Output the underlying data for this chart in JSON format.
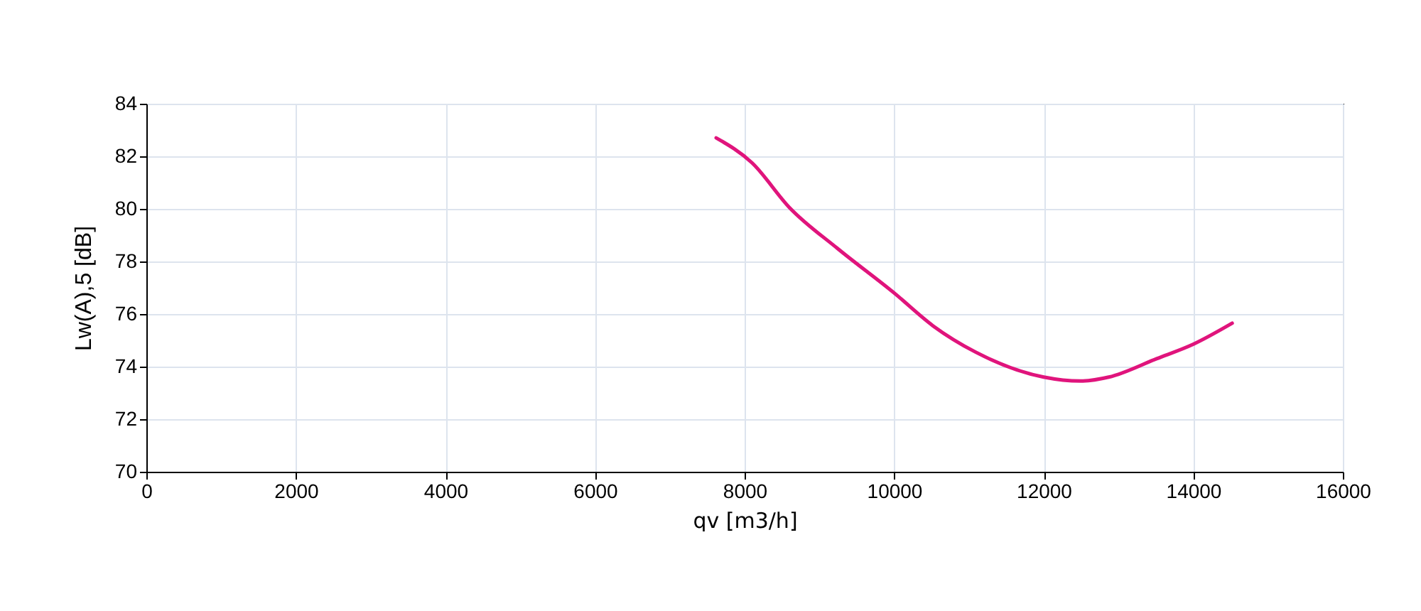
{
  "chart_data": {
    "type": "line",
    "xlabel": "qv [m3/h]",
    "ylabel": "Lw(A),5 [dB]",
    "xlim": [
      0,
      16000
    ],
    "xticks": [
      0,
      2000,
      4000,
      6000,
      8000,
      10000,
      12000,
      14000,
      16000
    ],
    "ylim": [
      70,
      84
    ],
    "yticks": [
      70,
      72,
      74,
      76,
      78,
      80,
      82,
      84
    ],
    "grid": true,
    "legend": false,
    "series": [
      {
        "color": "#e0147c",
        "x": [
          7620,
          8100,
          8600,
          9240,
          10000,
          10520,
          11090,
          12000,
          12490,
          12870,
          13510,
          14000,
          14520
        ],
        "values": [
          82.7,
          81.75,
          80.05,
          78.5,
          76.8,
          75.55,
          74.55,
          73.6,
          73.45,
          73.6,
          74.3,
          74.85,
          75.65
        ]
      }
    ]
  }
}
